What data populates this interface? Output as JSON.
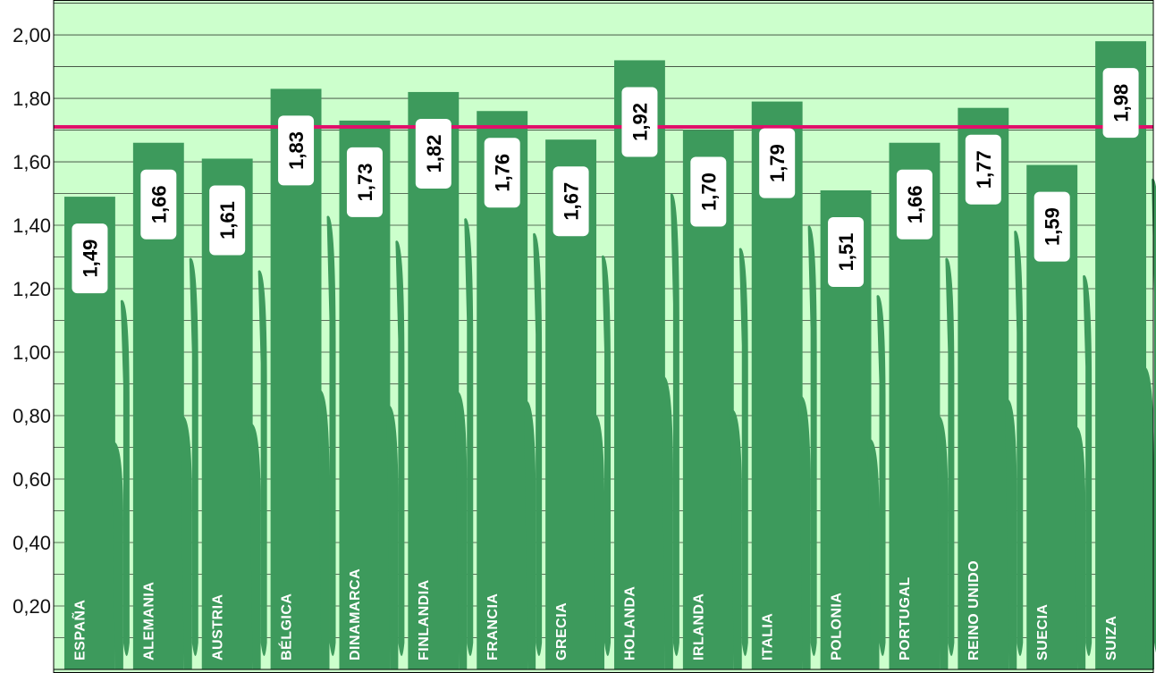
{
  "chart_data": {
    "type": "bar",
    "categories": [
      "ESPAÑA",
      "ALEMANIA",
      "AUSTRIA",
      "BÉLGICA",
      "DINAMARCA",
      "FINLANDIA",
      "FRANCIA",
      "GRECIA",
      "HOLANDA",
      "IRLANDA",
      "ITALIA",
      "POLONIA",
      "PORTUGAL",
      "REINO UNIDO",
      "SUECIA",
      "SUIZA"
    ],
    "values": [
      1.49,
      1.66,
      1.61,
      1.83,
      1.73,
      1.82,
      1.76,
      1.67,
      1.92,
      1.7,
      1.79,
      1.51,
      1.66,
      1.77,
      1.59,
      1.98
    ],
    "value_labels": [
      "1,49",
      "1,66",
      "1,61",
      "1,83",
      "1,73",
      "1,82",
      "1,76",
      "1,67",
      "1,92",
      "1,70",
      "1,79",
      "1,51",
      "1,66",
      "1,77",
      "1,59",
      "1,98"
    ],
    "yticks": [
      "0,20",
      "0,40",
      "0,60",
      "0,80",
      "1,00",
      "1,20",
      "1,40",
      "1,60",
      "1,80",
      "2,00"
    ],
    "ylim": [
      0,
      2.11
    ],
    "reference_line": 1.71,
    "grid": true,
    "colors": {
      "background": "#ccffcc",
      "bar": "#3d9a5c",
      "reference_line": "#e0106a",
      "label_box": "#ffffff",
      "grid": "#000000"
    }
  }
}
